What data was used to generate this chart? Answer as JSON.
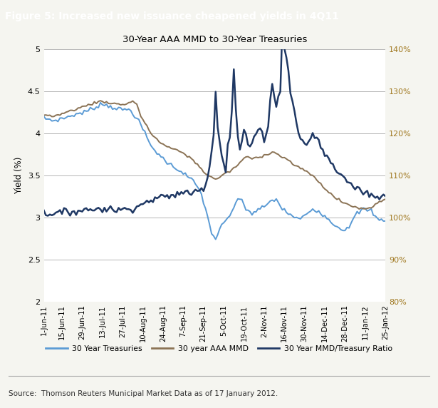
{
  "title_bar": "Figure 5: Increased new issuance cheapened yields in 4Q11",
  "chart_title": "30-Year AAA MMD to 30-Year Treasuries",
  "ylabel_left": "Yield (%)",
  "source_text": "Source:  Thomson Reuters Municipal Market Data as of 17 January 2012.",
  "title_bar_color": "#1e4d78",
  "title_bar_text_color": "#ffffff",
  "background_color": "#f5f5f0",
  "plot_bg_color": "#ffffff",
  "right_axis_color": "#a07820",
  "x_labels": [
    "1-Jun-11",
    "15-Jun-11",
    "29-Jun-11",
    "13-Jul-11",
    "27-Jul-11",
    "10-Aug-11",
    "24-Aug-11",
    "7-Sep-11",
    "21-Sep-11",
    "5-Oct-11",
    "19-Oct-11",
    "2-Nov-11",
    "16-Nov-11",
    "30-Nov-11",
    "14-Dec-11",
    "28-Dec-11",
    "11-Jan-12",
    "25-Jan-12"
  ],
  "legend_labels": [
    "30 Year Treasuries",
    "30 year AAA MMD",
    "30 Year MMD/Treasury Ratio"
  ],
  "legend_colors": [
    "#5b9bd5",
    "#8b7355",
    "#1f3864"
  ],
  "ylim_left": [
    2.0,
    5.0
  ],
  "ylim_right": [
    0.8,
    1.4
  ],
  "yticks_left": [
    2.0,
    2.5,
    3.0,
    3.5,
    4.0,
    4.5,
    5.0
  ],
  "ytick_labels_left": [
    "2",
    "2.5",
    "3",
    "3.5",
    "4",
    "4.5",
    "5"
  ],
  "yticks_right": [
    0.8,
    0.9,
    1.0,
    1.1,
    1.2,
    1.3,
    1.4
  ],
  "ytick_labels_right": [
    "80%",
    "90%",
    "100%",
    "110%",
    "120%",
    "130%",
    "140%"
  ]
}
